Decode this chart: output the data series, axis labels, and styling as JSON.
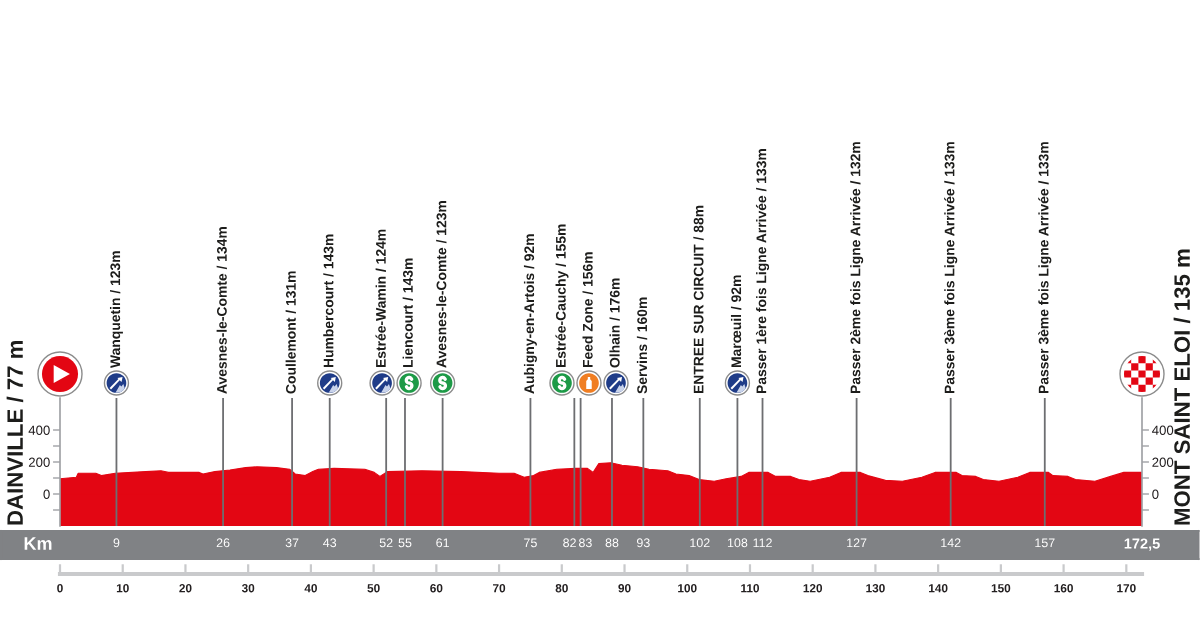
{
  "chart_data": {
    "type": "area",
    "x": [
      0,
      2.6,
      2.9,
      5.7,
      6.6,
      8.8,
      13.7,
      16.1,
      17.3,
      22.2,
      22.8,
      24.7,
      27.1,
      29.6,
      31.4,
      34.5,
      36.6,
      37.5,
      39.1,
      40.3,
      41.2,
      43.7,
      48.6,
      50.1,
      51.0,
      52.2,
      57.7,
      63.9,
      70.0,
      72.4,
      74.0,
      75.5,
      76.4,
      79.2,
      82.2,
      84.1,
      85.0,
      85.9,
      87.8,
      89.6,
      92.1,
      93.9,
      96.9,
      98.2,
      100.3,
      101.9,
      104.3,
      106.2,
      108.6,
      109.8,
      112.9,
      114.1,
      116.5,
      117.8,
      119.6,
      122.7,
      124.5,
      127.6,
      128.8,
      131.6,
      134.3,
      137.4,
      139.5,
      142.9,
      143.8,
      146.0,
      147.2,
      149.7,
      152.7,
      154.6,
      157.6,
      158.3,
      160.7,
      161.9,
      165.0,
      167.5,
      169.6,
      172.5
    ],
    "series": [
      {
        "color": "#e30613",
        "values": [
          95,
          105,
          130,
          130,
          115,
          130,
          140,
          145,
          135,
          135,
          125,
          140,
          150,
          165,
          170,
          165,
          155,
          125,
          115,
          140,
          155,
          160,
          155,
          135,
          110,
          140,
          145,
          140,
          130,
          130,
          105,
          115,
          135,
          155,
          160,
          160,
          135,
          190,
          195,
          180,
          170,
          155,
          145,
          125,
          115,
          90,
          80,
          95,
          110,
          135,
          135,
          110,
          110,
          90,
          80,
          105,
          135,
          135,
          115,
          85,
          80,
          105,
          135,
          135,
          115,
          110,
          90,
          80,
          105,
          135,
          135,
          115,
          110,
          90,
          80,
          110,
          135,
          135
        ]
      }
    ],
    "bands": [
      {
        "axis": "y",
        "from": -200,
        "to": 0,
        "color": "#e30613"
      }
    ],
    "xlim": [
      0,
      172.5
    ],
    "xticks": [
      0,
      10,
      20,
      30,
      40,
      50,
      60,
      70,
      80,
      90,
      100,
      110,
      120,
      130,
      140,
      150,
      160,
      170
    ],
    "ylim": [
      -200,
      600
    ],
    "yticks": [
      {
        "value": -100,
        "label": null
      },
      0,
      {
        "value": 100,
        "label": null
      },
      200,
      {
        "value": 300,
        "label": null
      },
      400
    ],
    "y2lim": [
      -200,
      600
    ],
    "y2ticks": [
      {
        "value": -100,
        "label": null
      },
      0,
      {
        "value": 100,
        "label": null
      },
      200,
      {
        "value": 300,
        "label": null
      },
      400
    ],
    "x2lim": [
      -9.4,
      181.5
    ],
    "x2ticks": [
      9,
      26,
      37,
      43,
      52,
      55,
      61,
      75,
      82,
      83,
      88,
      93,
      102,
      108,
      112,
      127,
      142,
      157,
      {
        "value": 172.5,
        "label": "172,5"
      }
    ],
    "x2label": "Km",
    "ref_lines": [
      {
        "axis": "x",
        "value": 9,
        "label": "Wanquetin / 123m",
        "color": "#6d6e71"
      },
      {
        "axis": "x",
        "value": 26,
        "label": "Avesnes-le-Comte / 134m",
        "color": "#6d6e71"
      },
      {
        "axis": "x",
        "value": 37,
        "label": "Coullemont / 131m",
        "color": "#6d6e71"
      },
      {
        "axis": "x",
        "value": 43,
        "label": "Humbercourt / 143m",
        "color": "#6d6e71"
      },
      {
        "axis": "x",
        "value": 52,
        "label": "Estrée-Wamin / 124m",
        "color": "#6d6e71"
      },
      {
        "axis": "x",
        "value": 55,
        "label": "Liencourt / 143m",
        "color": "#6d6e71"
      },
      {
        "axis": "x",
        "value": 61,
        "label": "Avesnes-le-Comte / 123m",
        "color": "#6d6e71"
      },
      {
        "axis": "x",
        "value": 75,
        "label": "Aubigny-en-Artois / 92m",
        "color": "#6d6e71"
      },
      {
        "axis": "x",
        "value": 82,
        "label": "Estrée-Cauchy / 155m",
        "color": "#6d6e71"
      },
      {
        "axis": "x",
        "value": 83,
        "label": "Feed Zone / 156m",
        "color": "#6d6e71"
      },
      {
        "axis": "x",
        "value": 88,
        "label": "Olhain / 176m",
        "color": "#6d6e71"
      },
      {
        "axis": "x",
        "value": 93,
        "label": "Servins / 160m",
        "color": "#6d6e71"
      },
      {
        "axis": "x",
        "value": 102,
        "label": "ENTREE SUR CIRCUIT / 88m",
        "color": "#6d6e71"
      },
      {
        "axis": "x",
        "value": 108,
        "label": "Marœuil / 92m",
        "color": "#6d6e71"
      },
      {
        "axis": "x",
        "value": 112,
        "label": "Passer 1ère fois Ligne Arrivée / 133m",
        "color": "#6d6e71"
      },
      {
        "axis": "x",
        "value": 127,
        "label": "Passer 2ème fois Ligne Arrivée / 132m",
        "color": "#6d6e71"
      },
      {
        "axis": "x",
        "value": 142,
        "label": "Passer 3ème fois Ligne Arrivée / 133m",
        "color": "#6d6e71"
      },
      {
        "axis": "x",
        "value": 157,
        "label": "Passer 3ème fois Ligne Arrivée / 133m",
        "color": "#6d6e71"
      }
    ],
    "annotations": [
      "DAINVILLE / 77 m",
      "MONT SAINT ELOI / 135 m"
    ]
  }
}
